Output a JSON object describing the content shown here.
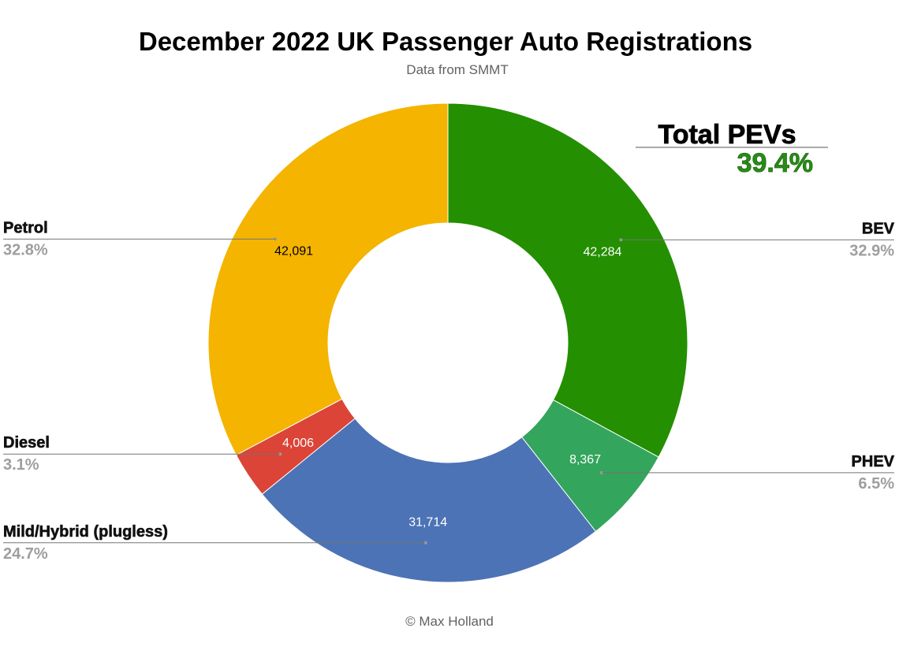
{
  "title": "December 2022 UK Passenger Auto Registrations",
  "subtitle": "Data from SMMT",
  "footer": "© Max Holland",
  "callout": {
    "label": "Total PEVs",
    "value": "39.4%"
  },
  "chart_data": {
    "type": "pie",
    "donut": true,
    "categories": [
      "BEV",
      "PHEV",
      "Mild/Hybrid (plugless)",
      "Diesel",
      "Petrol"
    ],
    "values": [
      42284,
      8367,
      31714,
      4006,
      42091
    ],
    "value_labels": [
      "42,284",
      "8,367",
      "31,714",
      "4,006",
      "42,091"
    ],
    "percent_labels": [
      "32.9%",
      "6.5%",
      "24.7%",
      "3.1%",
      "32.8%"
    ],
    "colors": [
      "#248f00",
      "#34a55d",
      "#4c73b5",
      "#db4437",
      "#f4b400"
    ],
    "value_label_colors": [
      "#ffffff",
      "#ffffff",
      "#ffffff",
      "#ffffff",
      "#000000"
    ],
    "label_sides": [
      "right",
      "right",
      "left",
      "left",
      "left"
    ],
    "legend": "none"
  }
}
